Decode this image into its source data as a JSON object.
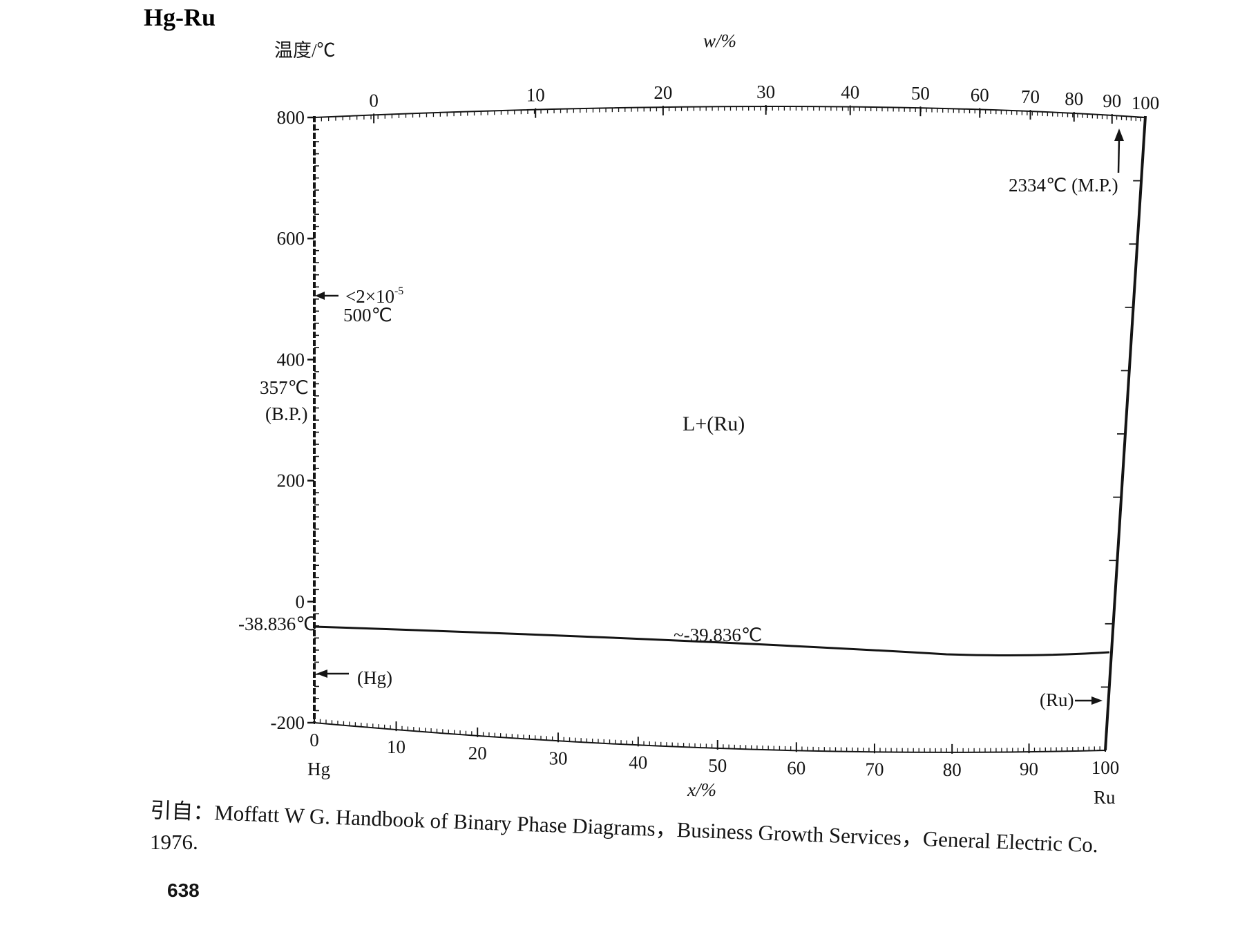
{
  "title": "Hg-Ru",
  "left_axis_label": "温度/℃",
  "top_axis_label": "w/%",
  "bottom_axis_label": "x/%",
  "left_element": "Hg",
  "right_element": "Ru",
  "colors": {
    "ink": "#141414",
    "background": "#ffffff"
  },
  "chart_data": {
    "type": "phase-diagram",
    "temperature_ticks": [
      800,
      600,
      400,
      200,
      0,
      -200
    ],
    "temperature_range": [
      -200,
      800
    ],
    "weight_percent_ticks": [
      0,
      10,
      20,
      30,
      40,
      50,
      60,
      70,
      80,
      90,
      100
    ],
    "atomic_percent_ticks": [
      0,
      10,
      20,
      30,
      40,
      50,
      60,
      70,
      80,
      90,
      100
    ],
    "invariant_line": {
      "temperature": -39.836,
      "label": "~-39.836℃"
    },
    "hg_melting_label": "-38.836℃",
    "hg_boiling": {
      "label_temp": "357℃",
      "label_kind": "(B.P.)"
    },
    "solubility_note": {
      "value": "<2×10",
      "exponent": "-5",
      "temp": "500℃"
    },
    "ru_melting": "2334℃ (M.P.)",
    "regions": [
      {
        "label": "L+(Ru)"
      },
      {
        "label": "(Hg)"
      },
      {
        "label": "(Ru)"
      }
    ]
  },
  "citation": {
    "line1": "引自：Moffatt W G. Handbook of Binary Phase Diagrams，Business Growth Services，General Electric Co.",
    "line2": "1976."
  },
  "page_number": "638"
}
